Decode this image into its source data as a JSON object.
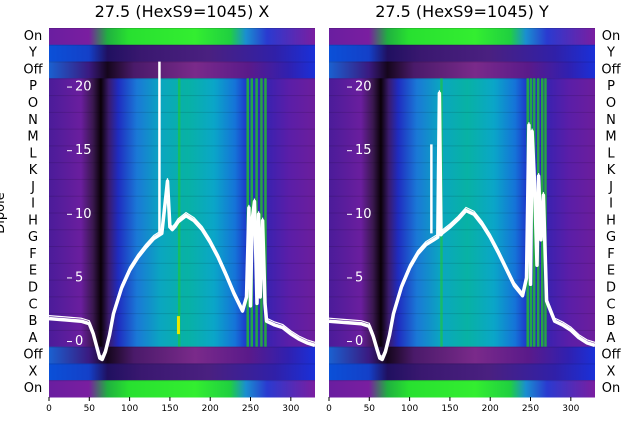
{
  "chart_data": [
    {
      "type": "heatmap",
      "title": "27.5 (HexS9=1045) X",
      "ylabel": "Dipole",
      "row_labels_top_to_bottom": [
        "On",
        "Y",
        "Off",
        "P",
        "O",
        "N",
        "M",
        "L",
        "K",
        "J",
        "I",
        "H",
        "G",
        "F",
        "E",
        "D",
        "C",
        "B",
        "A",
        "Off",
        "X",
        "On"
      ],
      "xlim": [
        0,
        330
      ],
      "x_ticks": [
        0,
        50,
        100,
        150,
        200,
        250,
        300
      ],
      "overlay_ylim": [
        -2,
        27
      ],
      "overlay_y_ticks": [
        0,
        5,
        10,
        15,
        20,
        25
      ],
      "overlay_line": {
        "x": [
          0,
          20,
          40,
          50,
          55,
          60,
          63,
          66,
          70,
          75,
          80,
          90,
          100,
          110,
          120,
          130,
          140,
          147,
          150,
          153,
          156,
          160,
          170,
          180,
          190,
          200,
          210,
          220,
          230,
          240,
          245,
          248,
          250,
          252,
          255,
          258,
          260,
          262,
          265,
          268,
          270,
          280,
          290,
          300,
          310,
          320,
          330
        ],
        "y": [
          1.8,
          1.7,
          1.6,
          1.4,
          0.6,
          -0.6,
          -1.3,
          -1.4,
          -0.8,
          0.5,
          2.2,
          4.2,
          5.6,
          6.6,
          7.4,
          8.1,
          8.5,
          12.6,
          9.0,
          8.8,
          9.0,
          9.4,
          9.9,
          9.5,
          8.8,
          7.8,
          6.6,
          5.2,
          3.7,
          2.4,
          3.5,
          10.5,
          2.8,
          9.5,
          11.0,
          3.0,
          10.0,
          3.5,
          9.5,
          3.0,
          1.6,
          1.3,
          1.1,
          0.6,
          0.2,
          -0.1,
          -0.3
        ],
        "spike": {
          "x": 137,
          "y": 22.0
        }
      }
    },
    {
      "type": "heatmap",
      "title": "27.5 (HexS9=1045) Y",
      "ylabel": "",
      "row_labels_top_to_bottom": [
        "On",
        "Y",
        "Off",
        "P",
        "O",
        "N",
        "M",
        "L",
        "K",
        "J",
        "I",
        "H",
        "G",
        "F",
        "E",
        "D",
        "C",
        "B",
        "A",
        "Off",
        "X",
        "On"
      ],
      "xlim": [
        0,
        330
      ],
      "x_ticks": [
        0,
        50,
        100,
        150,
        200,
        250,
        300
      ],
      "overlay_ylim": [
        -2,
        27
      ],
      "overlay_y_ticks": [
        0,
        5,
        10,
        15,
        20,
        25
      ],
      "overlay_line": {
        "x": [
          0,
          20,
          40,
          50,
          55,
          60,
          63,
          66,
          70,
          75,
          80,
          90,
          100,
          110,
          120,
          130,
          135,
          137,
          139,
          140,
          150,
          160,
          170,
          180,
          190,
          200,
          210,
          220,
          230,
          240,
          245,
          248,
          250,
          252,
          255,
          258,
          260,
          263,
          266,
          270,
          280,
          290,
          300,
          310,
          320,
          330
        ],
        "y": [
          1.6,
          1.5,
          1.4,
          1.2,
          0.4,
          -0.7,
          -1.3,
          -1.4,
          -0.8,
          0.5,
          2.2,
          4.3,
          5.8,
          6.9,
          7.6,
          8.0,
          8.2,
          19.5,
          8.4,
          8.5,
          9.0,
          9.6,
          10.3,
          10.0,
          9.2,
          8.2,
          7.0,
          5.7,
          4.4,
          3.6,
          5.0,
          17.0,
          4.5,
          16.5,
          12.5,
          6.0,
          13.0,
          8.0,
          11.5,
          3.2,
          1.6,
          1.3,
          0.9,
          0.3,
          -0.1,
          -0.3
        ],
        "spikes": [
          {
            "x": 137,
            "y": 19.5
          },
          {
            "x": 127,
            "y": 15.5
          }
        ]
      }
    }
  ]
}
